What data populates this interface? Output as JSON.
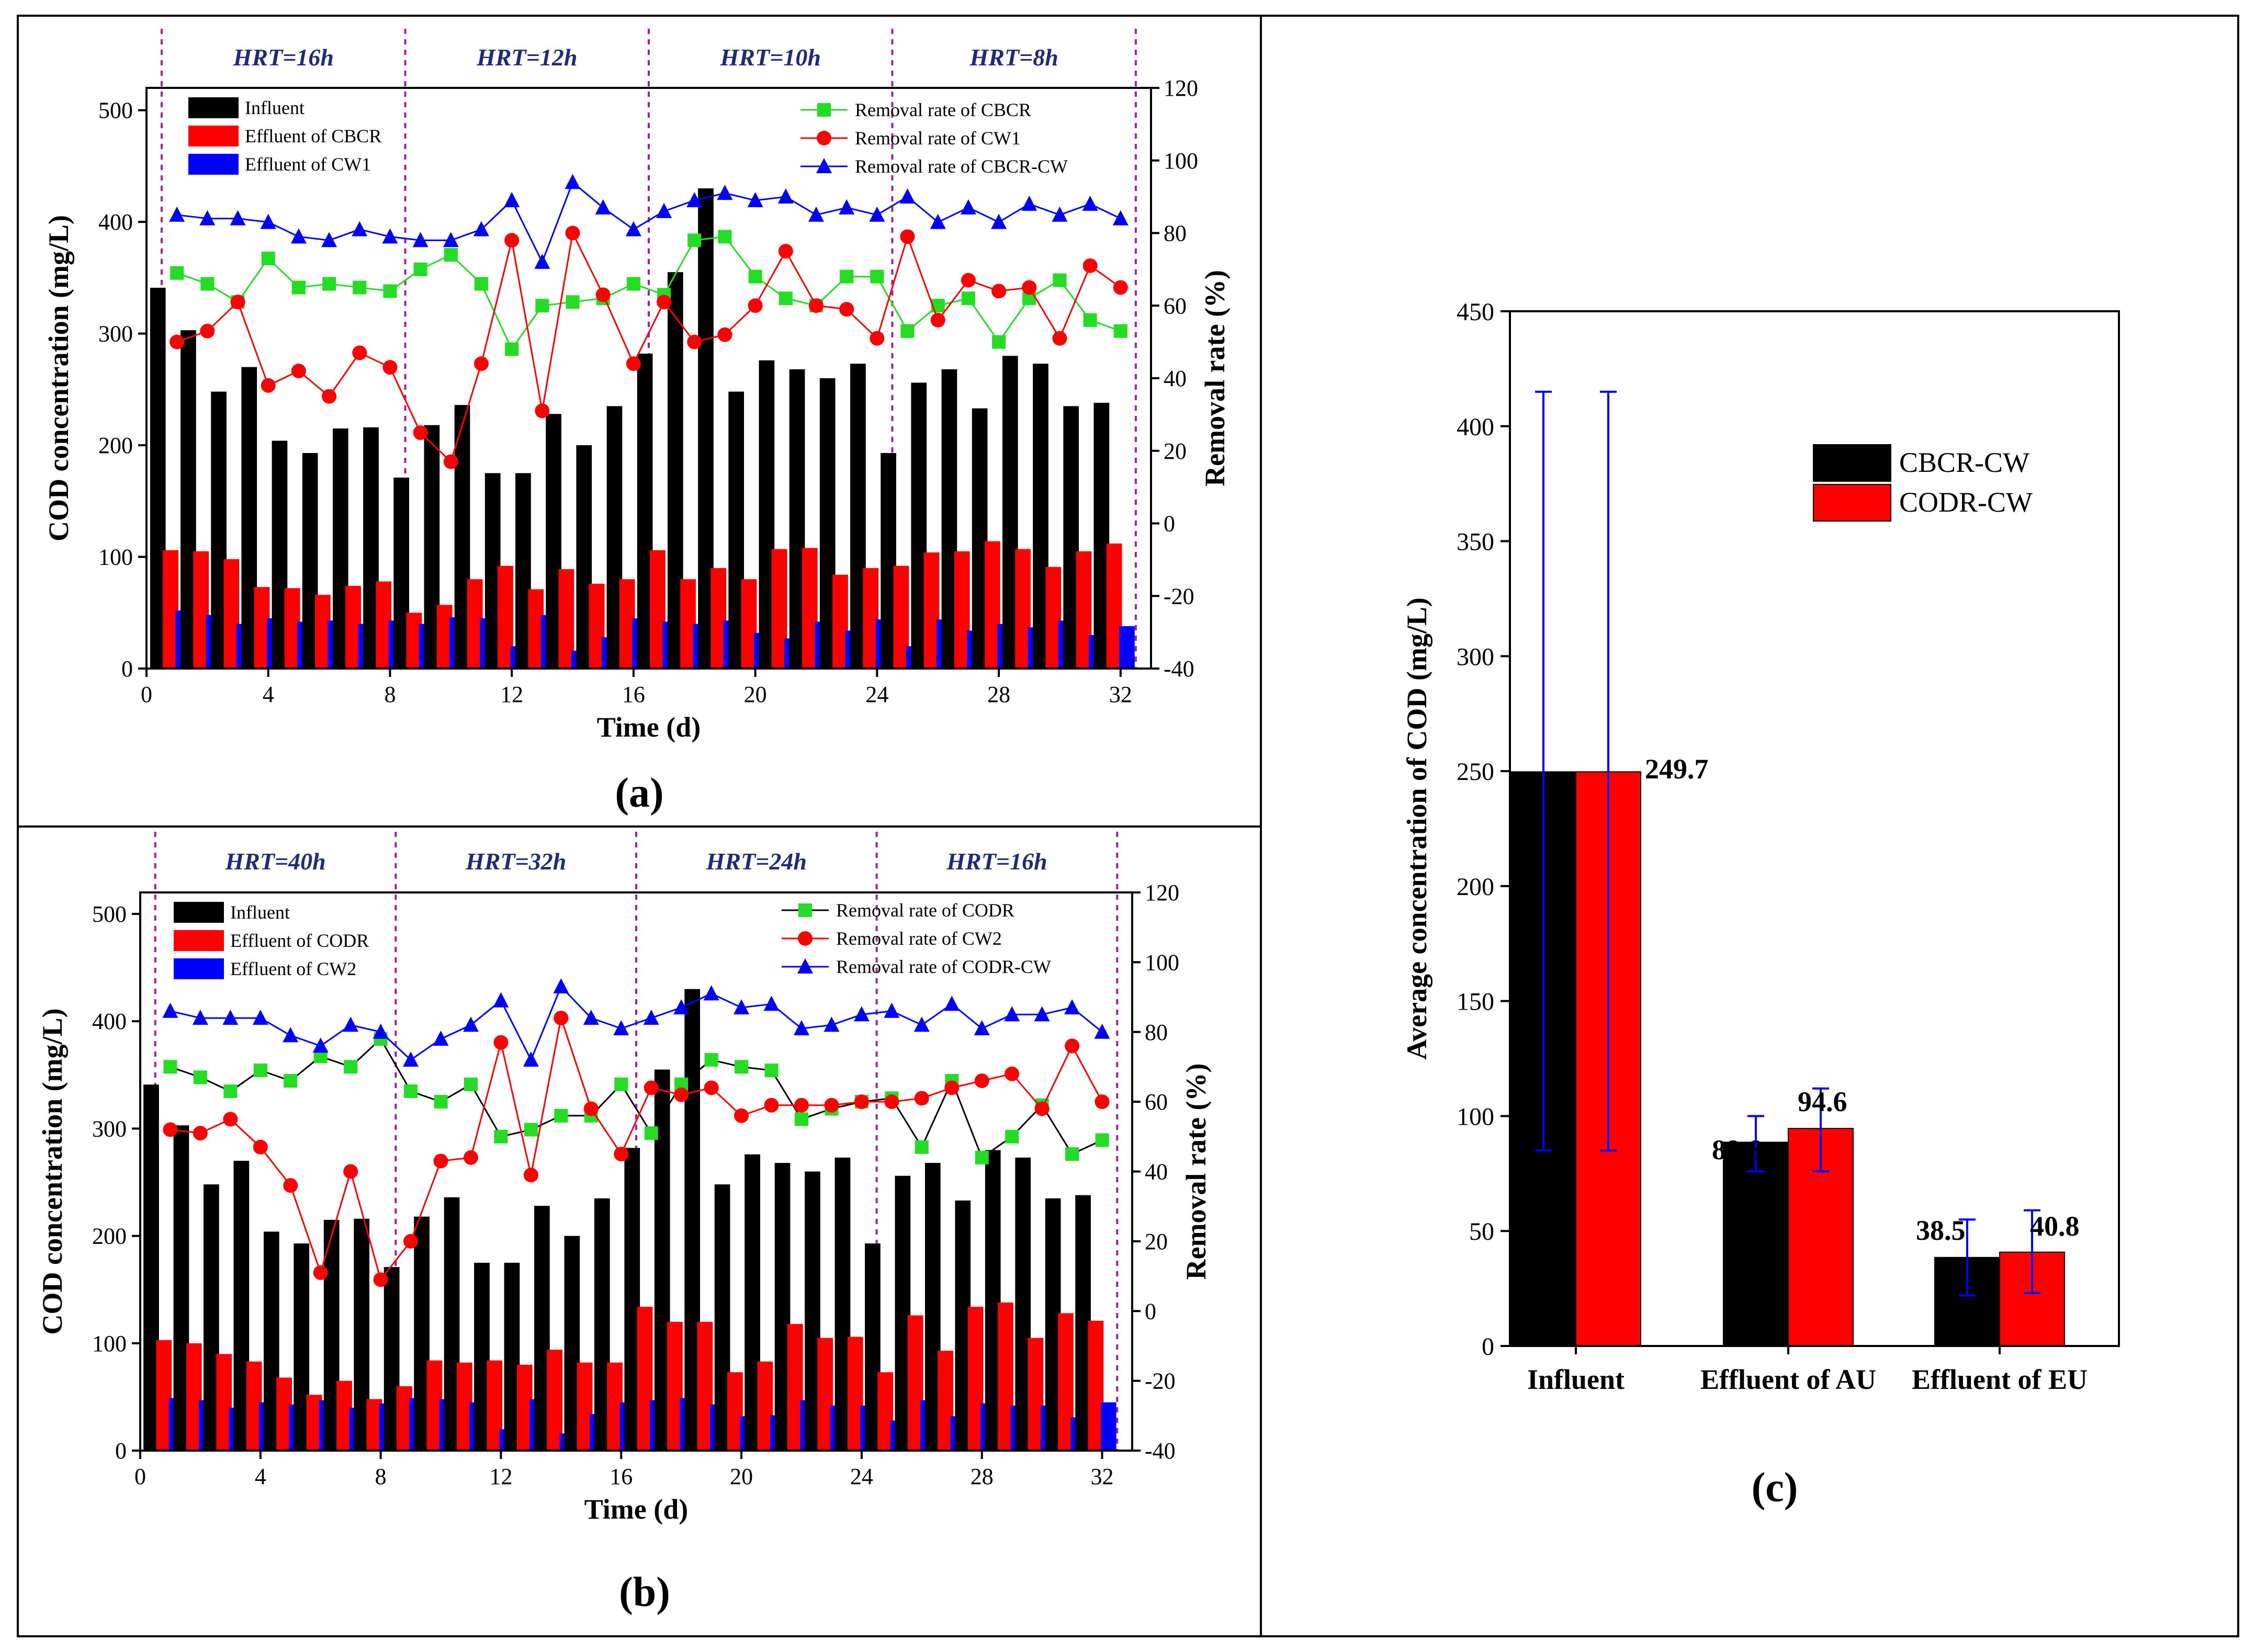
{
  "panel_a": {
    "label": "(a)",
    "hrt_labels": [
      "HRT=16h",
      "HRT=12h",
      "HRT=10h",
      "HRT=8h"
    ],
    "hrt_boundaries": [
      0.5,
      8.5,
      16.5,
      24.5,
      32.5
    ],
    "colors": {
      "influent": "#000000",
      "effluent1": "#ff0000",
      "effluent2": "#0000ff",
      "rr1": "#22dd22",
      "rr2": "#ff0000",
      "rr3": "#0000ff",
      "divider": "#a020a0"
    },
    "chart_data": {
      "type": "bar",
      "xlabel": "Time (d)",
      "ylabel": "COD concentration (mg/L)",
      "y2label": "Removal rate (%)",
      "xlim": [
        0,
        33
      ],
      "ylim": [
        0,
        520
      ],
      "y2lim": [
        -40,
        120
      ],
      "xticks": [
        0,
        4,
        8,
        12,
        16,
        20,
        24,
        28,
        32
      ],
      "yticks": [
        0,
        100,
        200,
        300,
        400,
        500
      ],
      "y2ticks": [
        -40,
        -20,
        0,
        20,
        40,
        60,
        80,
        100,
        120
      ],
      "x": [
        1,
        2,
        3,
        4,
        5,
        6,
        7,
        8,
        9,
        10,
        11,
        12,
        13,
        14,
        15,
        16,
        17,
        18,
        19,
        20,
        21,
        22,
        23,
        24,
        25,
        26,
        27,
        28,
        29,
        30,
        31,
        32
      ],
      "series": [
        {
          "name": "Influent",
          "axis": "left",
          "kind": "bar",
          "values": [
            341,
            303,
            248,
            270,
            204,
            193,
            215,
            216,
            171,
            218,
            236,
            175,
            175,
            228,
            200,
            235,
            282,
            355,
            430,
            248,
            276,
            268,
            260,
            273,
            193,
            256,
            268,
            233,
            280,
            273,
            235,
            238
          ]
        },
        {
          "name": "Effluent of CBCR",
          "axis": "left",
          "kind": "bar",
          "values": [
            106,
            105,
            98,
            73,
            72,
            66,
            74,
            78,
            50,
            57,
            80,
            92,
            71,
            89,
            76,
            80,
            106,
            80,
            90,
            80,
            107,
            108,
            84,
            90,
            92,
            104,
            105,
            114,
            107,
            91,
            105,
            112
          ]
        },
        {
          "name": "Effluent of CW1",
          "axis": "left",
          "kind": "bar",
          "values": [
            52,
            48,
            40,
            45,
            42,
            43,
            40,
            43,
            40,
            46,
            45,
            20,
            48,
            16,
            28,
            45,
            42,
            40,
            43,
            32,
            27,
            42,
            34,
            44,
            20,
            44,
            34,
            40,
            37,
            43,
            30,
            38
          ]
        },
        {
          "name": "Removal rate of CBCR",
          "axis": "right",
          "kind": "line",
          "marker": "square",
          "values": [
            69,
            66,
            61,
            73,
            65,
            66,
            65,
            64,
            70,
            74,
            66,
            48,
            60,
            61,
            62,
            66,
            63,
            78,
            79,
            68,
            62,
            60,
            68,
            68,
            53,
            60,
            62,
            50,
            62,
            67,
            56,
            53
          ]
        },
        {
          "name": "Removal rate of CW1",
          "axis": "right",
          "kind": "line",
          "marker": "circle",
          "values": [
            50,
            53,
            61,
            38,
            42,
            35,
            47,
            43,
            25,
            17,
            44,
            78,
            31,
            80,
            63,
            44,
            61,
            50,
            52,
            60,
            75,
            60,
            59,
            51,
            79,
            56,
            67,
            64,
            65,
            51,
            71,
            65
          ]
        },
        {
          "name": "Removal rate of CBCR-CW",
          "axis": "right",
          "kind": "line",
          "marker": "triangle",
          "values": [
            85,
            84,
            84,
            83,
            79,
            78,
            81,
            79,
            78,
            78,
            81,
            89,
            72,
            94,
            87,
            81,
            86,
            89,
            91,
            89,
            90,
            85,
            87,
            85,
            90,
            83,
            87,
            83,
            88,
            85,
            88,
            84
          ]
        }
      ]
    }
  },
  "panel_b": {
    "label": "(b)",
    "hrt_labels": [
      "HRT=40h",
      "HRT=32h",
      "HRT=24h",
      "HRT=16h"
    ],
    "hrt_boundaries": [
      0.5,
      8.5,
      16.5,
      24.5,
      32.5
    ],
    "colors": {
      "influent": "#000000",
      "effluent1": "#ff0000",
      "effluent2": "#0000ff",
      "rr1": "#22dd22",
      "rr1line": "#000000",
      "rr2": "#ff0000",
      "rr3": "#0000ff",
      "divider": "#a020a0"
    },
    "chart_data": {
      "type": "bar",
      "xlabel": "Time (d)",
      "ylabel": "COD concentration (mg/L)",
      "y2label": "Removal rate (%)",
      "xlim": [
        0,
        33
      ],
      "ylim": [
        0,
        520
      ],
      "y2lim": [
        -40,
        120
      ],
      "xticks": [
        0,
        4,
        8,
        12,
        16,
        20,
        24,
        28,
        32
      ],
      "yticks": [
        0,
        100,
        200,
        300,
        400,
        500
      ],
      "y2ticks": [
        -40,
        -20,
        0,
        20,
        40,
        60,
        80,
        100,
        120
      ],
      "x": [
        1,
        2,
        3,
        4,
        5,
        6,
        7,
        8,
        9,
        10,
        11,
        12,
        13,
        14,
        15,
        16,
        17,
        18,
        19,
        20,
        21,
        22,
        23,
        24,
        25,
        26,
        27,
        28,
        29,
        30,
        31,
        32
      ],
      "series": [
        {
          "name": "Influent",
          "axis": "left",
          "kind": "bar",
          "values": [
            341,
            303,
            248,
            270,
            204,
            193,
            215,
            216,
            171,
            218,
            236,
            175,
            175,
            228,
            200,
            235,
            282,
            355,
            430,
            248,
            276,
            268,
            260,
            273,
            193,
            256,
            268,
            233,
            280,
            273,
            235,
            238
          ]
        },
        {
          "name": "Effluent of CODR",
          "axis": "left",
          "kind": "bar",
          "values": [
            103,
            100,
            90,
            83,
            68,
            52,
            65,
            48,
            60,
            84,
            82,
            84,
            80,
            94,
            82,
            82,
            134,
            120,
            120,
            73,
            83,
            118,
            105,
            106,
            73,
            126,
            93,
            134,
            138,
            105,
            128,
            121
          ]
        },
        {
          "name": "Effluent of CW2",
          "axis": "left",
          "kind": "bar",
          "values": [
            49,
            47,
            40,
            45,
            43,
            47,
            40,
            44,
            49,
            48,
            45,
            20,
            48,
            16,
            34,
            45,
            47,
            49,
            43,
            32,
            33,
            47,
            42,
            42,
            28,
            47,
            32,
            44,
            42,
            42,
            31,
            45
          ]
        },
        {
          "name": "Removal rate of CODR",
          "axis": "right",
          "kind": "line",
          "marker": "square",
          "values": [
            70,
            67,
            63,
            69,
            66,
            73,
            70,
            78,
            63,
            60,
            65,
            50,
            52,
            56,
            56,
            65,
            51,
            65,
            72,
            70,
            69,
            55,
            58,
            60,
            61,
            47,
            66,
            44,
            50,
            59,
            45,
            49
          ]
        },
        {
          "name": "Removal rate of CW2",
          "axis": "right",
          "kind": "line",
          "marker": "circle",
          "values": [
            52,
            51,
            55,
            47,
            36,
            11,
            40,
            9,
            20,
            43,
            44,
            77,
            39,
            84,
            58,
            45,
            64,
            62,
            64,
            56,
            59,
            59,
            59,
            60,
            60,
            61,
            64,
            66,
            68,
            58,
            76,
            60
          ]
        },
        {
          "name": "Removal rate of CODR-CW",
          "axis": "right",
          "kind": "line",
          "marker": "triangle",
          "values": [
            86,
            84,
            84,
            84,
            79,
            76,
            82,
            80,
            72,
            78,
            82,
            89,
            72,
            93,
            84,
            81,
            84,
            87,
            91,
            87,
            88,
            81,
            82,
            85,
            86,
            82,
            88,
            81,
            85,
            85,
            87,
            80
          ]
        }
      ]
    }
  },
  "panel_c": {
    "label": "(c)",
    "colors": {
      "cbcr": "#000000",
      "codr": "#ff0000",
      "errbar": "#0000ff"
    },
    "chart_data": {
      "type": "bar",
      "ylabel": "Average concentration of COD (mg/L)",
      "categories": [
        "Influent",
        "Effluent of AU",
        "Effluent of EU"
      ],
      "ylim": [
        0,
        450
      ],
      "yticks": [
        0,
        50,
        100,
        150,
        200,
        250,
        300,
        350,
        400,
        450
      ],
      "legend_position": "upper-right",
      "series": [
        {
          "name": "CBCR-CW",
          "values": [
            249.7,
            88.6,
            38.5
          ],
          "err_low": [
            85,
            76,
            22
          ],
          "err_high": [
            415,
            100,
            55
          ]
        },
        {
          "name": "CODR-CW",
          "values": [
            249.7,
            94.6,
            40.8
          ],
          "err_low": [
            85,
            76,
            23
          ],
          "err_high": [
            415,
            112,
            59
          ]
        }
      ],
      "data_labels": [
        "249.7",
        "88.6",
        "94.6",
        "38.5",
        "40.8"
      ]
    }
  }
}
